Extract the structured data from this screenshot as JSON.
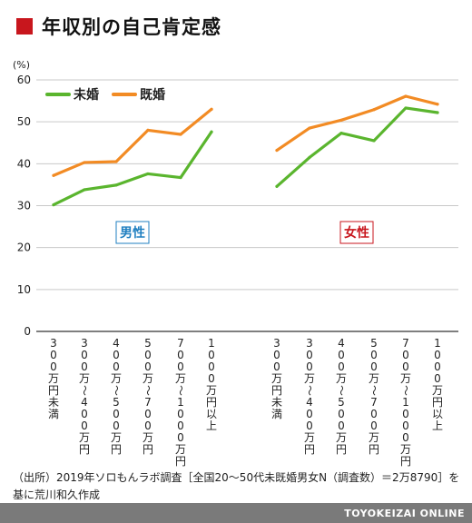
{
  "title": "年収別の自己肯定感",
  "chart_data": {
    "type": "line",
    "y_unit": "(%)",
    "ylim": [
      0,
      60
    ],
    "yticks": [
      0,
      10,
      20,
      30,
      40,
      50,
      60
    ],
    "grid": true,
    "legend_placement": "top-left",
    "colors": {
      "未婚": "#5ab52e",
      "既婚": "#f28b24"
    },
    "categories": [
      "300万円未満",
      "300万〜400万円",
      "400万〜500万円",
      "500万〜700万円",
      "700万〜1000万円",
      "1000万円以上"
    ],
    "category_labels": [
      [
        "3",
        "0",
        "0",
        "万",
        "円",
        "未",
        "満"
      ],
      [
        "3",
        "0",
        "0",
        "万",
        "〜",
        "4",
        "0",
        "0",
        "万",
        "円"
      ],
      [
        "4",
        "0",
        "0",
        "万",
        "〜",
        "5",
        "0",
        "0",
        "万",
        "円"
      ],
      [
        "5",
        "0",
        "0",
        "万",
        "〜",
        "7",
        "0",
        "0",
        "万",
        "円"
      ],
      [
        "7",
        "0",
        "0",
        "万",
        "〜",
        "1",
        "0",
        "0",
        "0",
        "万",
        "円"
      ],
      [
        "1",
        "0",
        "0",
        "0",
        "万",
        "円",
        "以",
        "上"
      ]
    ],
    "groups": [
      {
        "label": "男性",
        "label_color": "#1f7fc0",
        "series": [
          {
            "name": "未婚",
            "values": [
              30.2,
              33.8,
              34.9,
              37.6,
              36.7,
              47.6
            ]
          },
          {
            "name": "既婚",
            "values": [
              37.2,
              40.3,
              40.5,
              48.0,
              47.0,
              53.0
            ]
          }
        ]
      },
      {
        "label": "女性",
        "label_color": "#c8161d",
        "series": [
          {
            "name": "未婚",
            "values": [
              34.6,
              41.5,
              47.3,
              45.5,
              53.3,
              52.2
            ]
          },
          {
            "name": "既婚",
            "values": [
              43.2,
              48.5,
              50.4,
              52.9,
              56.1,
              54.2
            ]
          }
        ]
      }
    ]
  },
  "note": "（出所）2019年ソロもんラボ調査［全国20〜50代未既婚男女N（調査数）＝2万8790］を基に荒川和久作成",
  "footer": "TOYOKEIZAI ONLINE"
}
